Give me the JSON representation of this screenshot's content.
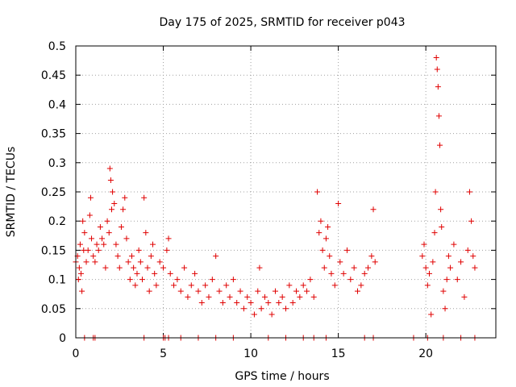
{
  "chart_data": {
    "type": "scatter",
    "title": "Day 175 of 2025, SRMTID for receiver p043",
    "xlabel": "GPS time / hours",
    "ylabel": "SRMTID / TECUs",
    "xlim": [
      0,
      24
    ],
    "ylim": [
      0,
      0.5
    ],
    "grid": true,
    "marker": "+",
    "color": "#e00000",
    "xticks": [
      0,
      5,
      10,
      15,
      20
    ],
    "xtick_labels": [
      "0",
      "5",
      "10",
      "15",
      "20"
    ],
    "yticks": [
      0,
      0.05,
      0.1,
      0.15,
      0.2,
      0.25,
      0.3,
      0.35,
      0.4,
      0.45,
      0.5
    ],
    "ytick_labels": [
      "0",
      "0.05",
      "0.1",
      "0.15",
      "0.2",
      "0.25",
      "0.3",
      "0.35",
      "0.4",
      "0.45",
      "0.5"
    ],
    "series": [
      {
        "name": "SRMTID",
        "points": [
          [
            0.0,
            0.13
          ],
          [
            0.1,
            0.14
          ],
          [
            0.15,
            0.1
          ],
          [
            0.2,
            0.12
          ],
          [
            0.25,
            0.16
          ],
          [
            0.3,
            0.11
          ],
          [
            0.35,
            0.08
          ],
          [
            0.4,
            0.2
          ],
          [
            0.45,
            0.15
          ],
          [
            0.5,
            0.18
          ],
          [
            0.6,
            0.13
          ],
          [
            0.7,
            0.15
          ],
          [
            0.8,
            0.21
          ],
          [
            0.85,
            0.24
          ],
          [
            0.9,
            0.17
          ],
          [
            1.0,
            0.14
          ],
          [
            1.1,
            0.13
          ],
          [
            1.2,
            0.16
          ],
          [
            1.3,
            0.15
          ],
          [
            1.4,
            0.19
          ],
          [
            1.5,
            0.17
          ],
          [
            1.6,
            0.16
          ],
          [
            1.7,
            0.12
          ],
          [
            1.8,
            0.2
          ],
          [
            1.9,
            0.18
          ],
          [
            1.95,
            0.29
          ],
          [
            2.0,
            0.27
          ],
          [
            2.05,
            0.22
          ],
          [
            2.1,
            0.25
          ],
          [
            2.2,
            0.23
          ],
          [
            2.3,
            0.16
          ],
          [
            2.4,
            0.14
          ],
          [
            2.5,
            0.12
          ],
          [
            2.6,
            0.19
          ],
          [
            2.7,
            0.22
          ],
          [
            2.8,
            0.24
          ],
          [
            2.9,
            0.17
          ],
          [
            3.0,
            0.13
          ],
          [
            3.1,
            0.1
          ],
          [
            3.2,
            0.14
          ],
          [
            3.3,
            0.12
          ],
          [
            3.4,
            0.09
          ],
          [
            3.5,
            0.11
          ],
          [
            3.6,
            0.15
          ],
          [
            3.7,
            0.13
          ],
          [
            3.8,
            0.1
          ],
          [
            3.9,
            0.24
          ],
          [
            4.0,
            0.18
          ],
          [
            4.1,
            0.12
          ],
          [
            4.2,
            0.08
          ],
          [
            4.3,
            0.14
          ],
          [
            4.4,
            0.16
          ],
          [
            4.5,
            0.11
          ],
          [
            4.6,
            0.09
          ],
          [
            4.8,
            0.13
          ],
          [
            5.0,
            0.12
          ],
          [
            5.2,
            0.15
          ],
          [
            5.3,
            0.17
          ],
          [
            5.4,
            0.11
          ],
          [
            5.6,
            0.09
          ],
          [
            5.8,
            0.1
          ],
          [
            6.0,
            0.08
          ],
          [
            6.2,
            0.12
          ],
          [
            6.4,
            0.07
          ],
          [
            6.6,
            0.09
          ],
          [
            6.8,
            0.11
          ],
          [
            7.0,
            0.08
          ],
          [
            7.2,
            0.06
          ],
          [
            7.4,
            0.09
          ],
          [
            7.6,
            0.07
          ],
          [
            7.8,
            0.1
          ],
          [
            8.0,
            0.14
          ],
          [
            8.2,
            0.08
          ],
          [
            8.4,
            0.06
          ],
          [
            8.6,
            0.09
          ],
          [
            8.8,
            0.07
          ],
          [
            9.0,
            0.1
          ],
          [
            9.2,
            0.06
          ],
          [
            9.4,
            0.08
          ],
          [
            9.6,
            0.05
          ],
          [
            9.8,
            0.07
          ],
          [
            10.0,
            0.06
          ],
          [
            10.2,
            0.04
          ],
          [
            10.4,
            0.08
          ],
          [
            10.5,
            0.12
          ],
          [
            10.6,
            0.05
          ],
          [
            10.8,
            0.07
          ],
          [
            11.0,
            0.06
          ],
          [
            11.2,
            0.04
          ],
          [
            11.4,
            0.08
          ],
          [
            11.6,
            0.06
          ],
          [
            11.8,
            0.07
          ],
          [
            12.0,
            0.05
          ],
          [
            12.2,
            0.09
          ],
          [
            12.4,
            0.06
          ],
          [
            12.6,
            0.08
          ],
          [
            12.8,
            0.07
          ],
          [
            13.0,
            0.09
          ],
          [
            13.2,
            0.08
          ],
          [
            13.4,
            0.1
          ],
          [
            13.6,
            0.07
          ],
          [
            13.8,
            0.25
          ],
          [
            13.9,
            0.18
          ],
          [
            14.0,
            0.2
          ],
          [
            14.1,
            0.15
          ],
          [
            14.2,
            0.12
          ],
          [
            14.3,
            0.17
          ],
          [
            14.4,
            0.19
          ],
          [
            14.5,
            0.14
          ],
          [
            14.6,
            0.11
          ],
          [
            14.8,
            0.09
          ],
          [
            15.0,
            0.23
          ],
          [
            15.1,
            0.13
          ],
          [
            15.3,
            0.11
          ],
          [
            15.5,
            0.15
          ],
          [
            15.7,
            0.1
          ],
          [
            15.9,
            0.12
          ],
          [
            16.1,
            0.08
          ],
          [
            16.3,
            0.09
          ],
          [
            16.5,
            0.11
          ],
          [
            16.7,
            0.12
          ],
          [
            16.9,
            0.14
          ],
          [
            17.0,
            0.22
          ],
          [
            17.1,
            0.13
          ],
          [
            19.8,
            0.14
          ],
          [
            19.9,
            0.16
          ],
          [
            20.0,
            0.12
          ],
          [
            20.1,
            0.09
          ],
          [
            20.2,
            0.11
          ],
          [
            20.3,
            0.04
          ],
          [
            20.4,
            0.13
          ],
          [
            20.5,
            0.18
          ],
          [
            20.55,
            0.25
          ],
          [
            20.6,
            0.48
          ],
          [
            20.65,
            0.46
          ],
          [
            20.7,
            0.43
          ],
          [
            20.75,
            0.38
          ],
          [
            20.8,
            0.33
          ],
          [
            20.85,
            0.22
          ],
          [
            20.9,
            0.19
          ],
          [
            21.0,
            0.08
          ],
          [
            21.1,
            0.05
          ],
          [
            21.2,
            0.1
          ],
          [
            21.3,
            0.14
          ],
          [
            21.4,
            0.12
          ],
          [
            21.6,
            0.16
          ],
          [
            21.8,
            0.1
          ],
          [
            22.0,
            0.13
          ],
          [
            22.2,
            0.07
          ],
          [
            22.4,
            0.15
          ],
          [
            22.5,
            0.25
          ],
          [
            22.6,
            0.2
          ],
          [
            22.7,
            0.14
          ],
          [
            22.8,
            0.12
          ],
          [
            0.5,
            0.0
          ],
          [
            1.0,
            0.0
          ],
          [
            1.1,
            0.0
          ],
          [
            3.9,
            0.0
          ],
          [
            5.0,
            0.0
          ],
          [
            5.1,
            0.0
          ],
          [
            5.3,
            0.0
          ],
          [
            6.0,
            0.0
          ],
          [
            7.0,
            0.0
          ],
          [
            8.0,
            0.0
          ],
          [
            9.0,
            0.0
          ],
          [
            11.0,
            0.0
          ],
          [
            12.0,
            0.0
          ],
          [
            13.0,
            0.0
          ],
          [
            13.6,
            0.0
          ],
          [
            14.3,
            0.0
          ],
          [
            16.5,
            0.0
          ],
          [
            17.0,
            0.0
          ],
          [
            19.3,
            0.0
          ],
          [
            20.1,
            0.0
          ],
          [
            21.0,
            0.0
          ],
          [
            22.0,
            0.0
          ],
          [
            22.8,
            0.0
          ]
        ]
      }
    ]
  }
}
